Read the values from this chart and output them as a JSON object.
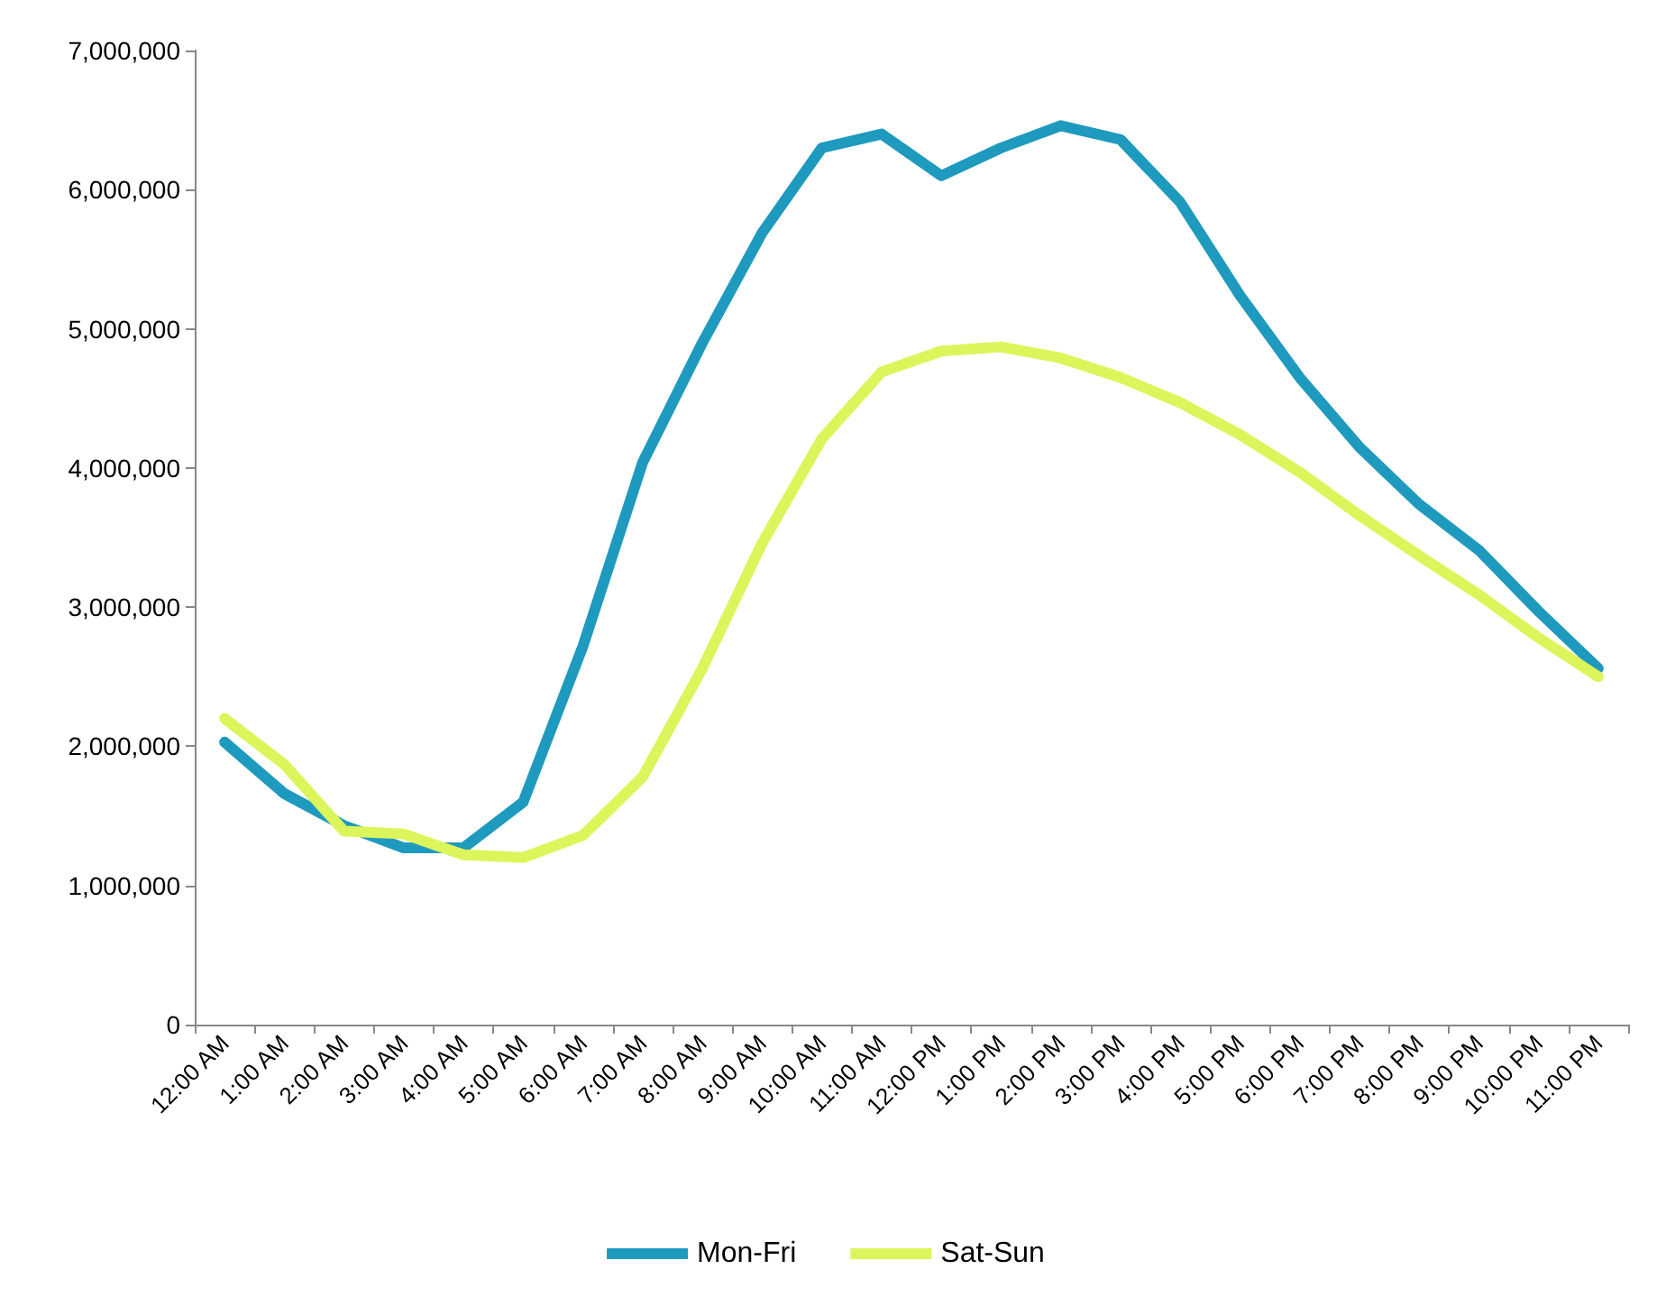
{
  "chart_data": {
    "type": "line",
    "categories": [
      "12:00 AM",
      "1:00 AM",
      "2:00 AM",
      "3:00 AM",
      "4:00 AM",
      "5:00 AM",
      "6:00 AM",
      "7:00 AM",
      "8:00 AM",
      "9:00 AM",
      "10:00 AM",
      "11:00 AM",
      "12:00 PM",
      "1:00 PM",
      "2:00 PM",
      "3:00 PM",
      "4:00 PM",
      "5:00 PM",
      "6:00 PM",
      "7:00 PM",
      "8:00 PM",
      "9:00 PM",
      "10:00 PM",
      "11:00 PM"
    ],
    "series": [
      {
        "name": "Mon-Fri",
        "color": "#1f9abf",
        "values": [
          2030000,
          1660000,
          1430000,
          1270000,
          1270000,
          1600000,
          2720000,
          4040000,
          4900000,
          5690000,
          6300000,
          6400000,
          6100000,
          6300000,
          6460000,
          6360000,
          5910000,
          5240000,
          4650000,
          4150000,
          3740000,
          3410000,
          2970000,
          2560000
        ]
      },
      {
        "name": "Sat-Sun",
        "color": "#dcf55a",
        "values": [
          2200000,
          1870000,
          1390000,
          1370000,
          1220000,
          1200000,
          1360000,
          1780000,
          2560000,
          3460000,
          4210000,
          4690000,
          4840000,
          4870000,
          4790000,
          4650000,
          4470000,
          4240000,
          3970000,
          3660000,
          3370000,
          3090000,
          2780000,
          2500000
        ]
      }
    ],
    "ylim": [
      0,
      7000000
    ],
    "yticks": [
      0,
      {
        "value": 1000000,
        "label": "1,000,000"
      },
      {
        "value": 2000000,
        "label": "2,000,000"
      },
      {
        "value": 3000000,
        "label": "3,000,000"
      },
      {
        "value": 4000000,
        "label": "4,000,000"
      },
      {
        "value": 5000000,
        "label": "5,000,000"
      },
      {
        "value": 6000000,
        "label": "6,000,000"
      },
      {
        "value": 7000000,
        "label": "7,000,000"
      }
    ],
    "grid": false,
    "legend": "bottom",
    "marker": "none",
    "line_style": "solid"
  }
}
